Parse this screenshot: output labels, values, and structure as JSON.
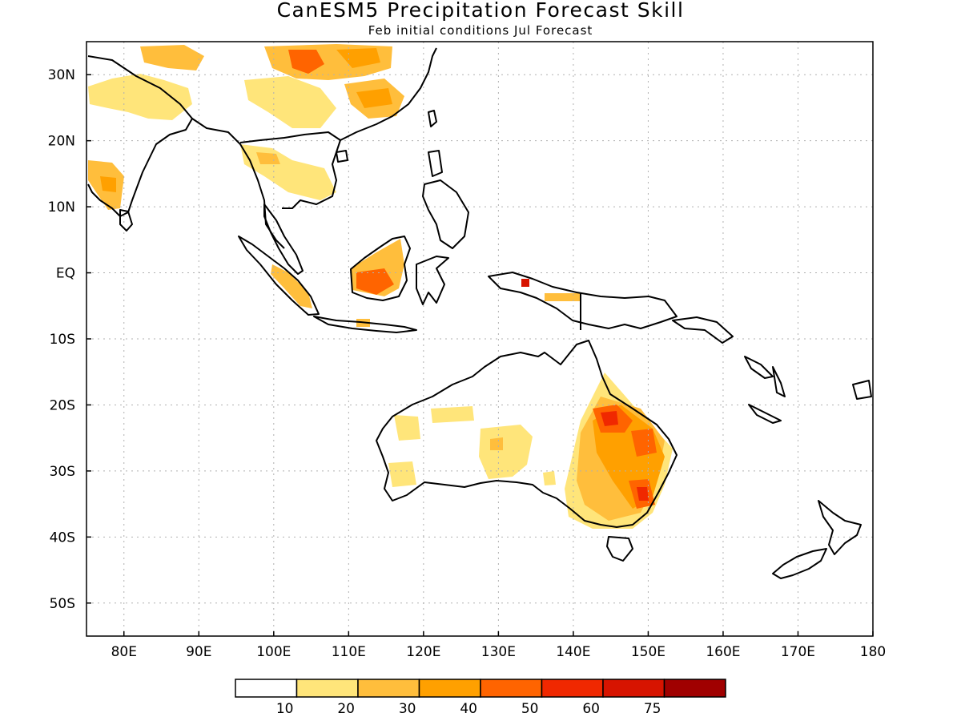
{
  "title": "CanESM5 Precipitation Forecast Skill",
  "subtitle": "Feb initial conditions  Jul Forecast",
  "map": {
    "lon_range": [
      75,
      180
    ],
    "lat_range": [
      -55,
      35
    ],
    "lon_ticks": [
      {
        "value": 80,
        "label": "80E"
      },
      {
        "value": 90,
        "label": "90E"
      },
      {
        "value": 100,
        "label": "100E"
      },
      {
        "value": 110,
        "label": "110E"
      },
      {
        "value": 120,
        "label": "120E"
      },
      {
        "value": 130,
        "label": "130E"
      },
      {
        "value": 140,
        "label": "140E"
      },
      {
        "value": 150,
        "label": "150E"
      },
      {
        "value": 160,
        "label": "160E"
      },
      {
        "value": 170,
        "label": "170E"
      },
      {
        "value": 180,
        "label": "180"
      }
    ],
    "lat_ticks": [
      {
        "value": 30,
        "label": "30N"
      },
      {
        "value": 20,
        "label": "20N"
      },
      {
        "value": 10,
        "label": "10N"
      },
      {
        "value": 0,
        "label": "EQ"
      },
      {
        "value": -10,
        "label": "10S"
      },
      {
        "value": -20,
        "label": "20S"
      },
      {
        "value": -30,
        "label": "30S"
      },
      {
        "value": -40,
        "label": "40S"
      },
      {
        "value": -50,
        "label": "50S"
      }
    ],
    "grid": "dotted"
  },
  "colorbar": {
    "colors": [
      "#ffffff",
      "#ffe57a",
      "#ffbe3c",
      "#ffa000",
      "#ff6400",
      "#f02800",
      "#d71400",
      "#a00000"
    ],
    "labels": [
      "10",
      "20",
      "30",
      "40",
      "50",
      "60",
      "75"
    ]
  }
}
